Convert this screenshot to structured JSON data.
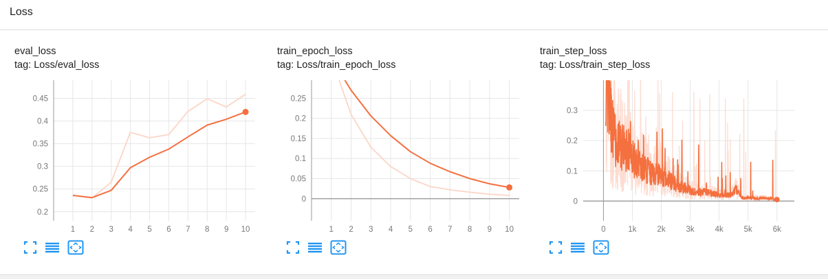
{
  "section_title": "Loss",
  "colors": {
    "smoothed": "#f4703f",
    "raw": "#fcd5c7",
    "grid": "#e6e6e6",
    "axis": "#9a9a9a",
    "icon": "#2196f3"
  },
  "icons": [
    "fullscreen-icon",
    "toggle-y-log-icon",
    "fit-domain-icon"
  ],
  "chart_data": [
    {
      "type": "line",
      "name_label": "eval_loss",
      "tag_label": "tag: Loss/eval_loss",
      "x": [
        1,
        2,
        3,
        4,
        5,
        6,
        7,
        8,
        9,
        10
      ],
      "xticks": [
        "1",
        "2",
        "3",
        "4",
        "5",
        "6",
        "7",
        "8",
        "9",
        "10"
      ],
      "yticks": [
        "0.2",
        "0.25",
        "0.3",
        "0.35",
        "0.4",
        "0.45"
      ],
      "ytick_values": [
        0.2,
        0.25,
        0.3,
        0.35,
        0.4,
        0.45
      ],
      "xlim": [
        0,
        10.5
      ],
      "ylim": [
        0.18,
        0.49
      ],
      "series": [
        {
          "role": "raw",
          "values": [
            0.236,
            0.23,
            0.265,
            0.375,
            0.363,
            0.37,
            0.421,
            0.449,
            0.431,
            0.459
          ]
        },
        {
          "role": "smoothed",
          "values": [
            0.236,
            0.231,
            0.247,
            0.297,
            0.32,
            0.338,
            0.365,
            0.391,
            0.404,
            0.42
          ]
        }
      ]
    },
    {
      "type": "line",
      "name_label": "train_epoch_loss",
      "tag_label": "tag: Loss/train_epoch_loss",
      "x": [
        1,
        2,
        3,
        4,
        5,
        6,
        7,
        8,
        9,
        10
      ],
      "xticks": [
        "1",
        "2",
        "3",
        "4",
        "5",
        "6",
        "7",
        "8",
        "9",
        "10"
      ],
      "yticks": [
        "0",
        "0.05",
        "0.1",
        "0.15",
        "0.2",
        "0.25"
      ],
      "ytick_values": [
        0,
        0.05,
        0.1,
        0.15,
        0.2,
        0.25
      ],
      "xlim": [
        0,
        10.5
      ],
      "ylim": [
        -0.055,
        0.295
      ],
      "series": [
        {
          "role": "raw",
          "values": [
            0.35,
            0.21,
            0.128,
            0.08,
            0.05,
            0.03,
            0.022,
            0.016,
            0.011,
            0.008
          ]
        },
        {
          "role": "smoothed",
          "values": [
            0.35,
            0.27,
            0.206,
            0.157,
            0.117,
            0.088,
            0.067,
            0.05,
            0.037,
            0.028
          ]
        }
      ]
    },
    {
      "type": "line",
      "name_label": "train_step_loss",
      "tag_label": "tag: Loss/train_step_loss",
      "xticks": [
        "0",
        "1k",
        "2k",
        "3k",
        "4k",
        "5k",
        "6k"
      ],
      "xtick_values": [
        0,
        1000,
        2000,
        3000,
        4000,
        5000,
        6000
      ],
      "yticks": [
        "0",
        "0.1",
        "0.2",
        "0.3"
      ],
      "ytick_values": [
        0,
        0.1,
        0.2,
        0.3
      ],
      "xlim": [
        -700,
        6600
      ],
      "ylim": [
        -0.065,
        0.4
      ],
      "noisy": true,
      "series": [
        {
          "role": "smoothed",
          "x": [
            100,
            200,
            300,
            400,
            500,
            700,
            900,
            1100,
            1400,
            1700,
            2000,
            2300,
            2600,
            2900,
            3200,
            3600,
            4000,
            4400,
            4600,
            4800,
            5200,
            5600,
            6000
          ],
          "values": [
            0.4,
            0.33,
            0.25,
            0.2,
            0.19,
            0.18,
            0.16,
            0.13,
            0.11,
            0.09,
            0.09,
            0.07,
            0.05,
            0.04,
            0.03,
            0.03,
            0.02,
            0.02,
            0.04,
            0.01,
            0.01,
            0.01,
            0.005
          ]
        }
      ]
    }
  ]
}
